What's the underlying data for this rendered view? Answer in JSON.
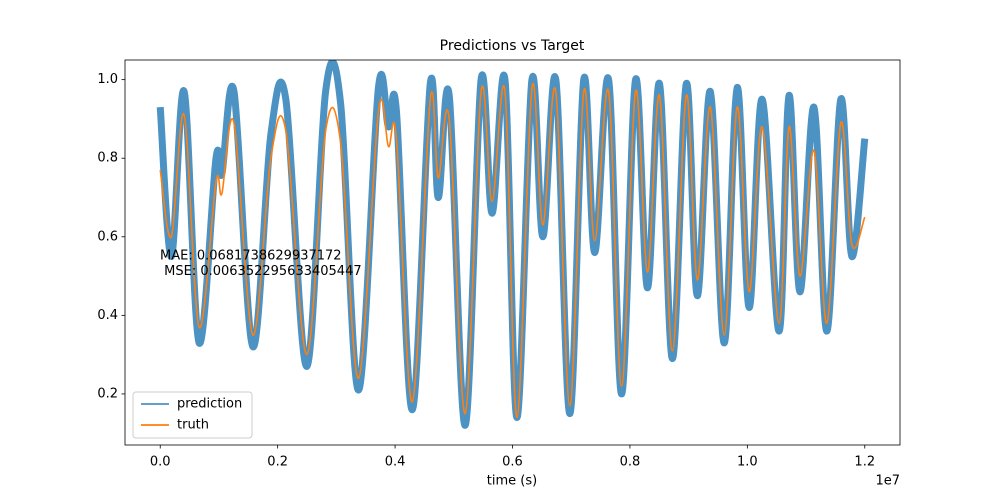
{
  "chart_data": {
    "type": "line",
    "title": "Predictions vs Target",
    "x_label": "time (s)",
    "x_offset_label": "1e7",
    "annotation": [
      "MAE: 0.0681738629937172",
      " MSE: 0.006352295633405447"
    ],
    "legend": "lower left",
    "x": [
      0,
      190000,
      407000,
      662000,
      950000,
      1050000,
      1256000,
      1578000,
      1884000,
      2139000,
      2495000,
      2817000,
      3072000,
      3378000,
      3717000,
      3887000,
      4023000,
      4294000,
      4600000,
      4735000,
      4922000,
      5193000,
      5465000,
      5652000,
      5872000,
      6076000,
      6331000,
      6517000,
      6738000,
      6976000,
      7213000,
      7400000,
      7637000,
      7858000,
      8096000,
      8299000,
      8503000,
      8724000,
      8961000,
      9148000,
      9369000,
      9606000,
      9827000,
      10031000,
      10251000,
      10540000,
      10710000,
      10896000,
      11134000,
      11354000,
      11592000,
      11779000,
      12000000
    ],
    "series": [
      {
        "name": "prediction",
        "color": "#1f77b4",
        "values": [
          0.93,
          0.55,
          0.97,
          0.33,
          0.8,
          0.76,
          0.97,
          0.32,
          0.86,
          0.95,
          0.27,
          0.97,
          0.94,
          0.21,
          0.98,
          0.88,
          0.92,
          0.16,
          0.99,
          0.7,
          0.96,
          0.12,
          1.0,
          0.66,
          1.0,
          0.14,
          1.0,
          0.6,
          1.0,
          0.15,
          1.0,
          0.56,
          1.0,
          0.2,
          1.0,
          0.47,
          0.99,
          0.29,
          0.99,
          0.45,
          0.97,
          0.33,
          0.98,
          0.42,
          0.95,
          0.36,
          0.96,
          0.46,
          0.93,
          0.36,
          0.95,
          0.55,
          0.85
        ]
      },
      {
        "name": "truth",
        "color": "#ff7f0e",
        "values": [
          0.77,
          0.6,
          0.91,
          0.37,
          0.74,
          0.71,
          0.89,
          0.35,
          0.8,
          0.87,
          0.3,
          0.87,
          0.84,
          0.24,
          0.92,
          0.83,
          0.85,
          0.18,
          0.95,
          0.75,
          0.9,
          0.15,
          0.97,
          0.69,
          0.97,
          0.14,
          0.98,
          0.63,
          0.97,
          0.17,
          0.97,
          0.59,
          0.97,
          0.22,
          0.97,
          0.51,
          0.96,
          0.31,
          0.96,
          0.49,
          0.93,
          0.35,
          0.93,
          0.46,
          0.88,
          0.38,
          0.88,
          0.5,
          0.82,
          0.38,
          0.89,
          0.58,
          0.65
        ]
      }
    ],
    "xlim": [
      -600000,
      12600000
    ],
    "ylim": [
      0.07,
      1.05
    ],
    "xticks": [
      {
        "value": 0,
        "label": "0.0"
      },
      {
        "value": 2000000,
        "label": "0.2"
      },
      {
        "value": 4000000,
        "label": "0.4"
      },
      {
        "value": 6000000,
        "label": "0.6"
      },
      {
        "value": 8000000,
        "label": "0.8"
      },
      {
        "value": 10000000,
        "label": "1.0"
      },
      {
        "value": 12000000,
        "label": "1.2"
      }
    ],
    "yticks": [
      0.2,
      0.4,
      0.6,
      0.8,
      {
        "value": 1.0,
        "label": "1.0"
      }
    ]
  }
}
